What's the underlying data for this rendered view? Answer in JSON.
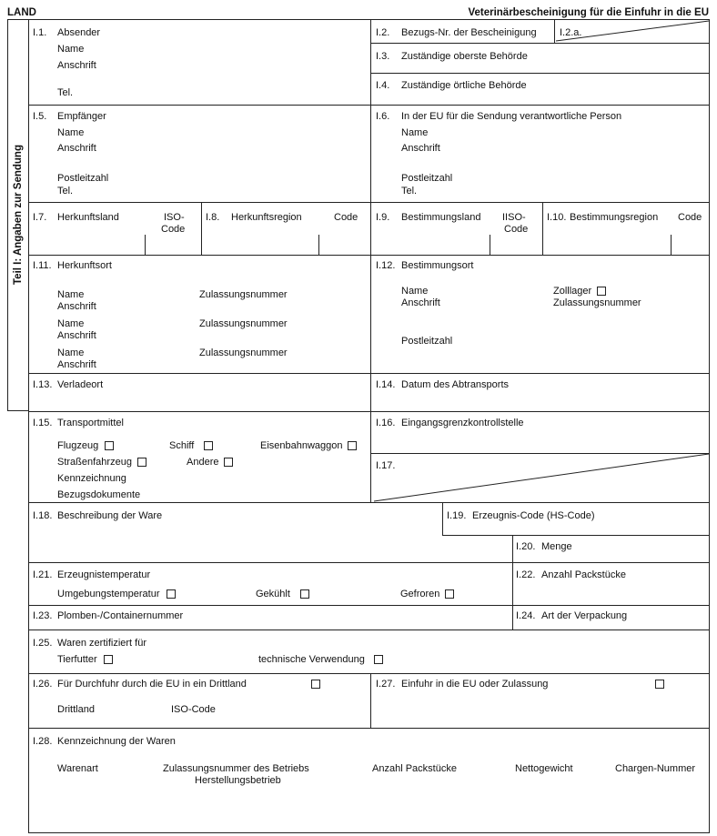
{
  "header": {
    "country": "LAND",
    "title": "Veterinärbescheinigung für die Einfuhr in die EU"
  },
  "sidebar": {
    "label": "Teil I: Angaben zur Sendung"
  },
  "f": {
    "i1": {
      "n": "I.1.",
      "l": "Absender",
      "name": "Name",
      "addr": "Anschrift",
      "tel": "Tel."
    },
    "i2": {
      "n": "I.2.",
      "l": "Bezugs-Nr. der Bescheinigung"
    },
    "i2a": {
      "n": "I.2.a."
    },
    "i3": {
      "n": "I.3.",
      "l": "Zuständige oberste Behörde"
    },
    "i4": {
      "n": "I.4.",
      "l": "Zuständige örtliche Behörde"
    },
    "i5": {
      "n": "I.5.",
      "l": "Empfänger",
      "name": "Name",
      "addr": "Anschrift",
      "zip": "Postleitzahl",
      "tel": "Tel."
    },
    "i6": {
      "n": "I.6.",
      "l": "In der EU für die Sendung verantwortliche Person",
      "name": "Name",
      "addr": "Anschrift",
      "zip": "Postleitzahl",
      "tel": "Tel."
    },
    "i7": {
      "n": "I.7.",
      "l": "Herkunftsland",
      "iso1": "ISO-",
      "iso2": "Code"
    },
    "i8": {
      "n": "I.8.",
      "l": "Herkunftsregion",
      "code": "Code"
    },
    "i9": {
      "n": "I.9.",
      "l": "Bestimmungsland",
      "iso1": "IISO-",
      "iso2": "Code"
    },
    "i10": {
      "n": "I.10.",
      "l": "Bestimmungsregion",
      "code": "Code"
    },
    "i11": {
      "n": "I.11.",
      "l": "Herkunftsort",
      "name": "Name",
      "addr": "Anschrift",
      "approval": "Zulassungsnummer"
    },
    "i12": {
      "n": "I.12.",
      "l": "Bestimmungsort",
      "name": "Name",
      "addr": "Anschrift",
      "customs": "Zolllager",
      "approval": "Zulassungsnummer",
      "zip": "Postleitzahl"
    },
    "i13": {
      "n": "I.13.",
      "l": "Verladeort"
    },
    "i14": {
      "n": "I.14.",
      "l": "Datum des Abtransports"
    },
    "i15": {
      "n": "I.15.",
      "l": "Transportmittel",
      "plane": "Flugzeug",
      "ship": "Schiff",
      "rail": "Eisenbahnwaggon",
      "road": "Straßenfahrzeug",
      "other": "Andere",
      "ident": "Kennzeichnung",
      "docs": "Bezugsdokumente"
    },
    "i16": {
      "n": "I.16.",
      "l": "Eingangsgrenzkontrollstelle"
    },
    "i17": {
      "n": "I.17."
    },
    "i18": {
      "n": "I.18.",
      "l": "Beschreibung der Ware"
    },
    "i19": {
      "n": "I.19.",
      "l": "Erzeugnis-Code (HS-Code)"
    },
    "i20": {
      "n": "I.20.",
      "l": "Menge"
    },
    "i21": {
      "n": "I.21.",
      "l": "Erzeugnistemperatur",
      "ambient": "Umgebungstemperatur",
      "chilled": "Gekühlt",
      "frozen": "Gefroren"
    },
    "i22": {
      "n": "I.22.",
      "l": "Anzahl Packstücke"
    },
    "i23": {
      "n": "I.23.",
      "l": "Plomben-/Containernummer"
    },
    "i24": {
      "n": "I.24.",
      "l": "Art der Verpackung"
    },
    "i25": {
      "n": "I.25.",
      "l": "Waren zertifiziert für",
      "feed": "Tierfutter",
      "tech": "technische Verwendung"
    },
    "i26": {
      "n": "I.26.",
      "l": "Für Durchfuhr durch die EU in ein Drittland",
      "country": "Drittland",
      "iso": "ISO-Code"
    },
    "i27": {
      "n": "I.27.",
      "l": "Einfuhr in die EU oder Zulassung"
    },
    "i28": {
      "n": "I.28.",
      "l": "Kennzeichnung der Waren",
      "c1": "Warenart",
      "c2a": "Zulassungsnummer des Betriebs",
      "c2b": "Herstellungsbetrieb",
      "c3": "Anzahl Packstücke",
      "c4": "Nettogewicht",
      "c5": "Chargen-Nummer"
    }
  }
}
